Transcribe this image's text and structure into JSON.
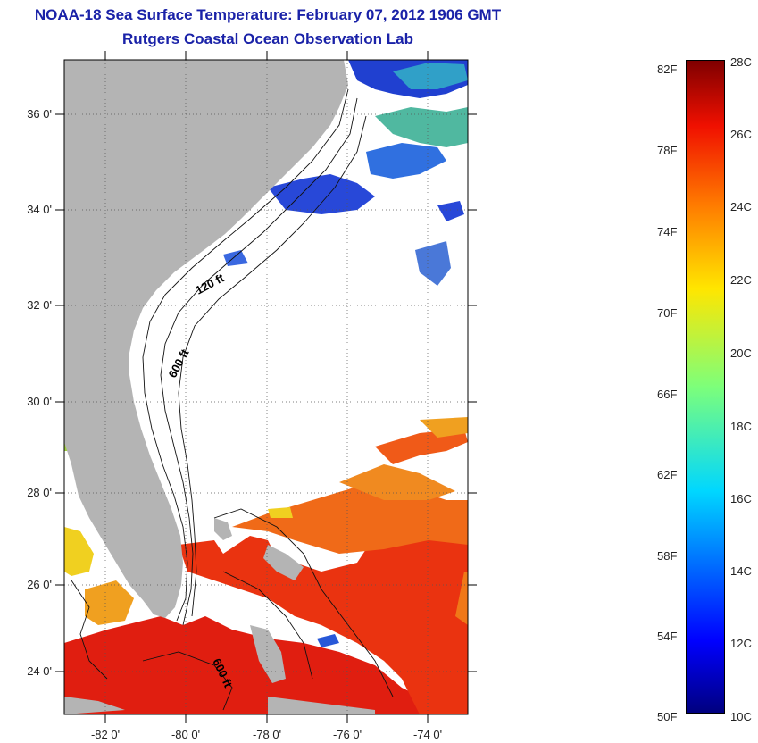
{
  "header": {
    "title": "NOAA-18 Sea Surface Temperature:  February 07, 2012 1906 GMT",
    "subtitle": "Rutgers Coastal Ocean Observation Lab"
  },
  "map": {
    "lat_ticks": [
      "36 0'",
      "34 0'",
      "32 0'",
      "30 0'",
      "28 0'",
      "26 0'",
      "24 0'"
    ],
    "lon_ticks": [
      "-82 0'",
      "-80 0'",
      "-78 0'",
      "-76 0'",
      "-74 0'"
    ],
    "contours": [
      "120 ft",
      "600 ft",
      "600 ft"
    ],
    "colors": {
      "land": "#b4b4b4",
      "no_data": "#ffffff",
      "title": "#1a22a8"
    }
  },
  "colorbar": {
    "fahrenheit": [
      "82F",
      "78F",
      "74F",
      "70F",
      "66F",
      "62F",
      "58F",
      "54F",
      "50F"
    ],
    "celsius": [
      "28C",
      "26C",
      "24C",
      "22C",
      "20C",
      "18C",
      "16C",
      "14C",
      "12C",
      "10C"
    ]
  }
}
